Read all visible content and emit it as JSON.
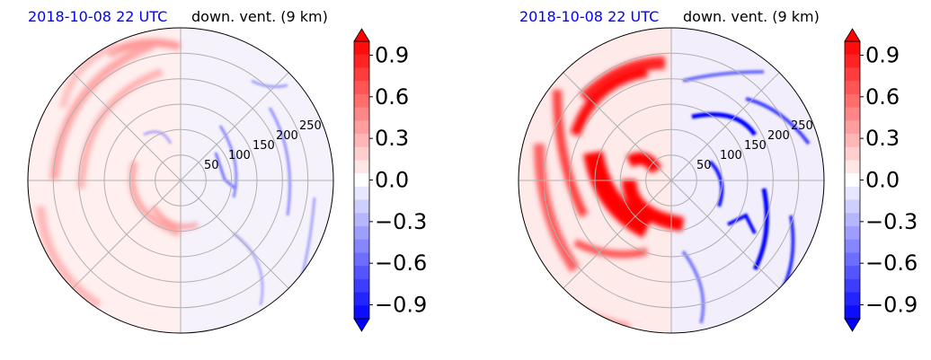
{
  "chart_data": [
    {
      "type": "heatmap",
      "date_label": "2018-10-08 22 UTC",
      "title": "down. vent. (9 km)",
      "radial_ticks": [
        "50",
        "100",
        "150",
        "200",
        "250"
      ],
      "radial_values": [
        50,
        100,
        150,
        200,
        250
      ],
      "r_max": 300,
      "angular_grid_deg": [
        0,
        45,
        90,
        135,
        180,
        225,
        270,
        315
      ],
      "colorbar": {
        "min": -1.0,
        "max": 1.0,
        "extend": "both",
        "ticks": [
          "0.9",
          "0.6",
          "0.3",
          "0.0",
          "−0.3",
          "−0.6",
          "−0.9"
        ],
        "tick_values": [
          0.9,
          0.6,
          0.3,
          0.0,
          -0.3,
          -0.6,
          -0.9
        ],
        "low_color": "#0000ff",
        "mid_color": "#ffffff",
        "high_color": "#ff0000"
      },
      "intensity": 0.5,
      "grid": true
    },
    {
      "type": "heatmap",
      "date_label": "2018-10-08 22 UTC",
      "title": "down. vent. (9 km)",
      "radial_ticks": [
        "50",
        "100",
        "150",
        "200",
        "250"
      ],
      "radial_values": [
        50,
        100,
        150,
        200,
        250
      ],
      "r_max": 300,
      "angular_grid_deg": [
        0,
        45,
        90,
        135,
        180,
        225,
        270,
        315
      ],
      "colorbar": {
        "min": -1.0,
        "max": 1.0,
        "extend": "both",
        "ticks": [
          "0.9",
          "0.6",
          "0.3",
          "0.0",
          "−0.3",
          "−0.6",
          "−0.9"
        ],
        "tick_values": [
          0.9,
          0.6,
          0.3,
          0.0,
          -0.3,
          -0.6,
          -0.9
        ],
        "low_color": "#0000ff",
        "mid_color": "#ffffff",
        "high_color": "#ff0000"
      },
      "intensity": 1.0,
      "grid": true
    }
  ]
}
